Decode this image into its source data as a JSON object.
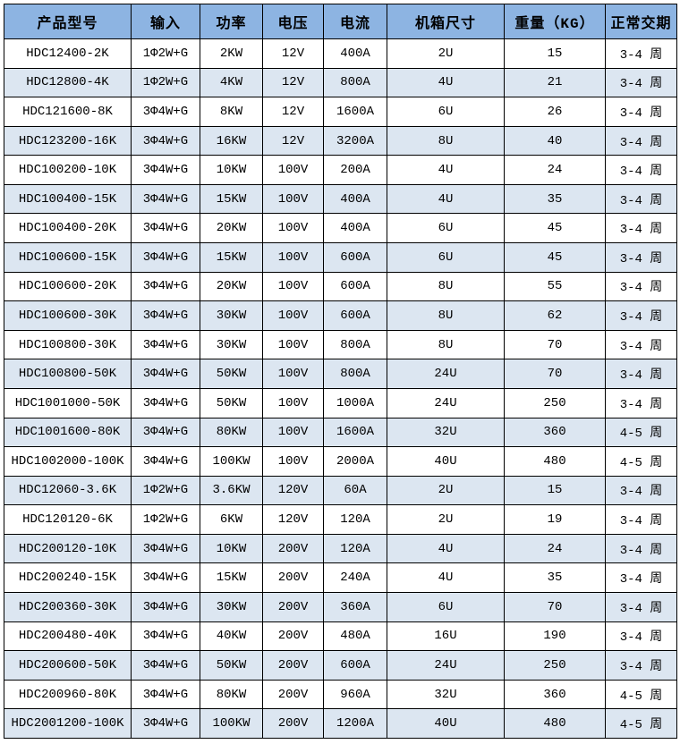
{
  "table": {
    "headers": [
      "产品型号",
      "输入",
      "功率",
      "电压",
      "电流",
      "机箱尺寸",
      "重量（KG）",
      "正常交期"
    ],
    "rows": [
      [
        "HDC12400-2K",
        "1Φ2W+G",
        "2KW",
        "12V",
        "400A",
        "2U",
        "15",
        "3-4 周"
      ],
      [
        "HDC12800-4K",
        "1Φ2W+G",
        "4KW",
        "12V",
        "800A",
        "4U",
        "21",
        "3-4 周"
      ],
      [
        "HDC121600-8K",
        "3Φ4W+G",
        "8KW",
        "12V",
        "1600A",
        "6U",
        "26",
        "3-4 周"
      ],
      [
        "HDC123200-16K",
        "3Φ4W+G",
        "16KW",
        "12V",
        "3200A",
        "8U",
        "40",
        "3-4 周"
      ],
      [
        "HDC100200-10K",
        "3Φ4W+G",
        "10KW",
        "100V",
        "200A",
        "4U",
        "24",
        "3-4 周"
      ],
      [
        "HDC100400-15K",
        "3Φ4W+G",
        "15KW",
        "100V",
        "400A",
        "4U",
        "35",
        "3-4 周"
      ],
      [
        "HDC100400-20K",
        "3Φ4W+G",
        "20KW",
        "100V",
        "400A",
        "6U",
        "45",
        "3-4 周"
      ],
      [
        "HDC100600-15K",
        "3Φ4W+G",
        "15KW",
        "100V",
        "600A",
        "6U",
        "45",
        "3-4 周"
      ],
      [
        "HDC100600-20K",
        "3Φ4W+G",
        "20KW",
        "100V",
        "600A",
        "8U",
        "55",
        "3-4 周"
      ],
      [
        "HDC100600-30K",
        "3Φ4W+G",
        "30KW",
        "100V",
        "600A",
        "8U",
        "62",
        "3-4 周"
      ],
      [
        "HDC100800-30K",
        "3Φ4W+G",
        "30KW",
        "100V",
        "800A",
        "8U",
        "70",
        "3-4 周"
      ],
      [
        "HDC100800-50K",
        "3Φ4W+G",
        "50KW",
        "100V",
        "800A",
        "24U",
        "70",
        "3-4 周"
      ],
      [
        "HDC1001000-50K",
        "3Φ4W+G",
        "50KW",
        "100V",
        "1000A",
        "24U",
        "250",
        "3-4 周"
      ],
      [
        "HDC1001600-80K",
        "3Φ4W+G",
        "80KW",
        "100V",
        "1600A",
        "32U",
        "360",
        "4-5 周"
      ],
      [
        "HDC1002000-100K",
        "3Φ4W+G",
        "100KW",
        "100V",
        "2000A",
        "40U",
        "480",
        "4-5 周"
      ],
      [
        "HDC12060-3.6K",
        "1Φ2W+G",
        "3.6KW",
        "120V",
        "60A",
        "2U",
        "15",
        "3-4 周"
      ],
      [
        "HDC120120-6K",
        "1Φ2W+G",
        "6KW",
        "120V",
        "120A",
        "2U",
        "19",
        "3-4 周"
      ],
      [
        "HDC200120-10K",
        "3Φ4W+G",
        "10KW",
        "200V",
        "120A",
        "4U",
        "24",
        "3-4 周"
      ],
      [
        "HDC200240-15K",
        "3Φ4W+G",
        "15KW",
        "200V",
        "240A",
        "4U",
        "35",
        "3-4 周"
      ],
      [
        "HDC200360-30K",
        "3Φ4W+G",
        "30KW",
        "200V",
        "360A",
        "6U",
        "70",
        "3-4 周"
      ],
      [
        "HDC200480-40K",
        "3Φ4W+G",
        "40KW",
        "200V",
        "480A",
        "16U",
        "190",
        "3-4 周"
      ],
      [
        "HDC200600-50K",
        "3Φ4W+G",
        "50KW",
        "200V",
        "600A",
        "24U",
        "250",
        "3-4 周"
      ],
      [
        "HDC200960-80K",
        "3Φ4W+G",
        "80KW",
        "200V",
        "960A",
        "32U",
        "360",
        "4-5 周"
      ],
      [
        "HDC2001200-100K",
        "3Φ4W+G",
        "100KW",
        "200V",
        "1200A",
        "40U",
        "480",
        "4-5 周"
      ]
    ],
    "colors": {
      "header_bg": "#8DB4E2",
      "stripe_bg": "#DCE6F1",
      "row_bg": "#FFFFFF",
      "border": "#000000",
      "text": "#000000"
    }
  }
}
